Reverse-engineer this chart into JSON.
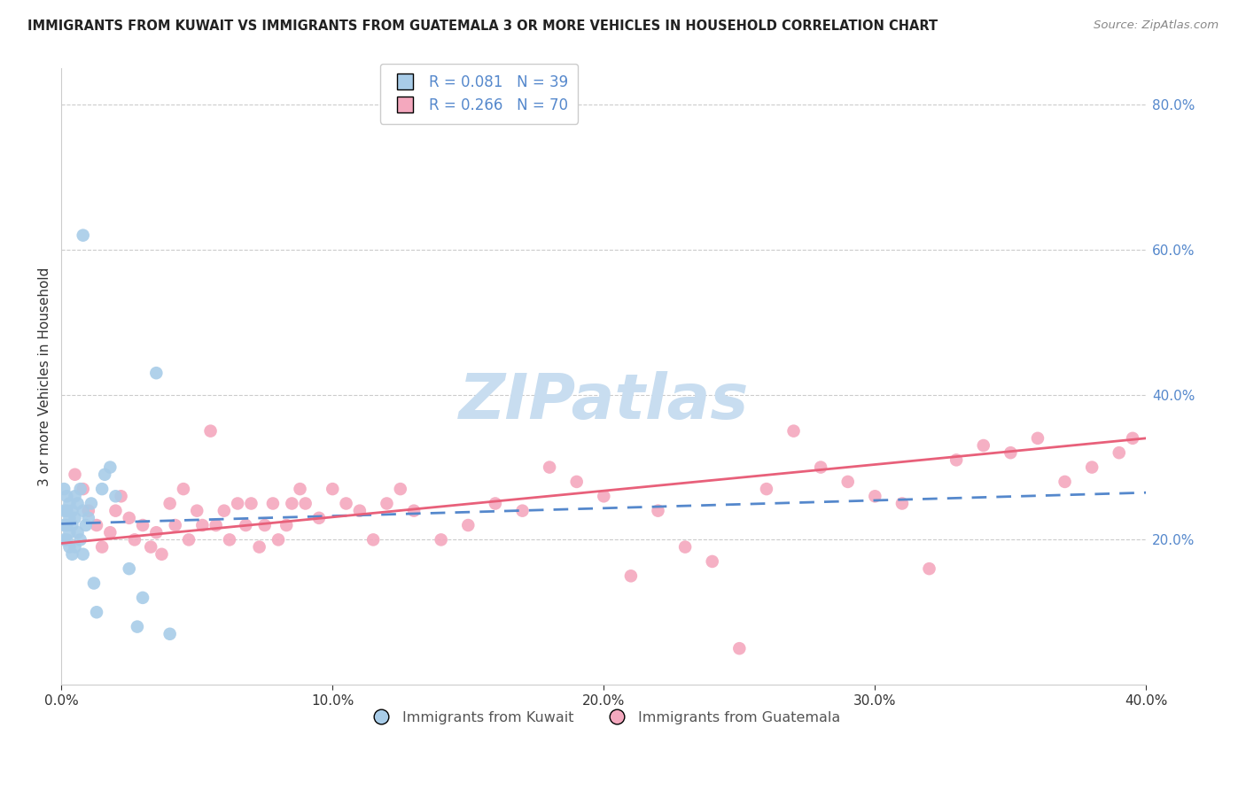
{
  "title": "IMMIGRANTS FROM KUWAIT VS IMMIGRANTS FROM GUATEMALA 3 OR MORE VEHICLES IN HOUSEHOLD CORRELATION CHART",
  "source": "Source: ZipAtlas.com",
  "ylabel": "3 or more Vehicles in Household",
  "legend_entries": [
    "Immigrants from Kuwait",
    "Immigrants from Guatemala"
  ],
  "kuwait_R": 0.081,
  "kuwait_N": 39,
  "guatemala_R": 0.266,
  "guatemala_N": 70,
  "kuwait_color": "#a8cce8",
  "guatemala_color": "#f4a8be",
  "kuwait_line_color": "#5588cc",
  "guatemala_line_color": "#e8607a",
  "right_axis_color": "#5588cc",
  "xlim": [
    0.0,
    0.4
  ],
  "ylim": [
    0.0,
    0.85
  ],
  "xticks": [
    0.0,
    0.1,
    0.2,
    0.3,
    0.4
  ],
  "yticks_right": [
    0.2,
    0.4,
    0.6,
    0.8
  ],
  "kuwait_x": [
    0.001,
    0.001,
    0.001,
    0.001,
    0.002,
    0.002,
    0.002,
    0.002,
    0.003,
    0.003,
    0.003,
    0.003,
    0.004,
    0.004,
    0.004,
    0.005,
    0.005,
    0.005,
    0.006,
    0.006,
    0.007,
    0.007,
    0.008,
    0.008,
    0.009,
    0.01,
    0.011,
    0.012,
    0.013,
    0.015,
    0.016,
    0.018,
    0.02,
    0.025,
    0.028,
    0.03,
    0.035,
    0.04,
    0.008
  ],
  "kuwait_y": [
    0.27,
    0.24,
    0.22,
    0.2,
    0.26,
    0.24,
    0.22,
    0.2,
    0.25,
    0.23,
    0.21,
    0.19,
    0.24,
    0.22,
    0.18,
    0.26,
    0.23,
    0.19,
    0.25,
    0.21,
    0.27,
    0.2,
    0.24,
    0.18,
    0.22,
    0.23,
    0.25,
    0.14,
    0.1,
    0.27,
    0.29,
    0.3,
    0.26,
    0.16,
    0.08,
    0.12,
    0.43,
    0.07,
    0.62
  ],
  "guatemala_x": [
    0.005,
    0.008,
    0.01,
    0.013,
    0.015,
    0.018,
    0.02,
    0.022,
    0.025,
    0.027,
    0.03,
    0.033,
    0.035,
    0.037,
    0.04,
    0.042,
    0.045,
    0.047,
    0.05,
    0.052,
    0.055,
    0.057,
    0.06,
    0.062,
    0.065,
    0.068,
    0.07,
    0.073,
    0.075,
    0.078,
    0.08,
    0.083,
    0.085,
    0.088,
    0.09,
    0.095,
    0.1,
    0.105,
    0.11,
    0.115,
    0.12,
    0.125,
    0.13,
    0.14,
    0.15,
    0.16,
    0.17,
    0.18,
    0.19,
    0.2,
    0.21,
    0.22,
    0.23,
    0.24,
    0.25,
    0.26,
    0.27,
    0.28,
    0.29,
    0.3,
    0.31,
    0.32,
    0.33,
    0.34,
    0.35,
    0.36,
    0.37,
    0.38,
    0.39,
    0.395
  ],
  "guatemala_y": [
    0.29,
    0.27,
    0.24,
    0.22,
    0.19,
    0.21,
    0.24,
    0.26,
    0.23,
    0.2,
    0.22,
    0.19,
    0.21,
    0.18,
    0.25,
    0.22,
    0.27,
    0.2,
    0.24,
    0.22,
    0.35,
    0.22,
    0.24,
    0.2,
    0.25,
    0.22,
    0.25,
    0.19,
    0.22,
    0.25,
    0.2,
    0.22,
    0.25,
    0.27,
    0.25,
    0.23,
    0.27,
    0.25,
    0.24,
    0.2,
    0.25,
    0.27,
    0.24,
    0.2,
    0.22,
    0.25,
    0.24,
    0.3,
    0.28,
    0.26,
    0.15,
    0.24,
    0.19,
    0.17,
    0.05,
    0.27,
    0.35,
    0.3,
    0.28,
    0.26,
    0.25,
    0.16,
    0.31,
    0.33,
    0.32,
    0.34,
    0.28,
    0.3,
    0.32,
    0.34
  ],
  "kuwait_trend": [
    0.22,
    0.25
  ],
  "guatemala_trend": [
    0.18,
    0.34
  ],
  "watermark": "ZIPatlas",
  "watermark_color": "#c8ddf0",
  "background_color": "#ffffff"
}
